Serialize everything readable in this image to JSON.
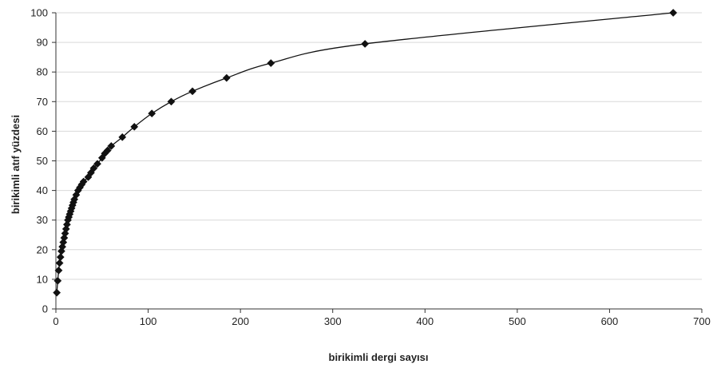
{
  "chart_data": {
    "type": "line",
    "title": "",
    "xlabel": "birikimli dergi sayısı",
    "ylabel": "birikimli atıf yüzdesi",
    "xlim": [
      0,
      700
    ],
    "ylim": [
      0,
      100
    ],
    "xticks": [
      0,
      100,
      200,
      300,
      400,
      500,
      600,
      700
    ],
    "yticks": [
      0,
      10,
      20,
      30,
      40,
      50,
      60,
      70,
      80,
      90,
      100
    ],
    "grid": "horizontal",
    "legend": "none",
    "colors": {
      "line": "#111111",
      "marker": "#111111",
      "grid": "#d9d9d9",
      "axis": "#333333"
    },
    "marker": "diamond",
    "series": [
      {
        "x": [
          1,
          2,
          3,
          4,
          5,
          6,
          7,
          8,
          9,
          10,
          11,
          12,
          13,
          14,
          15,
          16,
          17,
          18,
          19,
          20,
          22,
          24,
          26,
          28,
          30,
          35,
          38,
          41,
          45,
          50,
          53,
          56,
          60,
          72,
          85,
          104,
          125,
          148,
          185,
          233,
          335,
          669
        ],
        "y": [
          5.5,
          9.5,
          13,
          15.5,
          17.5,
          19.5,
          21,
          22.5,
          24,
          25.5,
          27,
          28.5,
          30,
          31,
          32,
          33,
          34,
          35,
          36,
          37,
          38.5,
          40,
          41,
          42,
          43,
          44.5,
          46,
          47.5,
          49,
          51,
          52.5,
          53.5,
          55,
          58,
          61.5,
          66,
          70,
          73.5,
          78,
          83,
          89.5,
          100
        ]
      }
    ]
  }
}
